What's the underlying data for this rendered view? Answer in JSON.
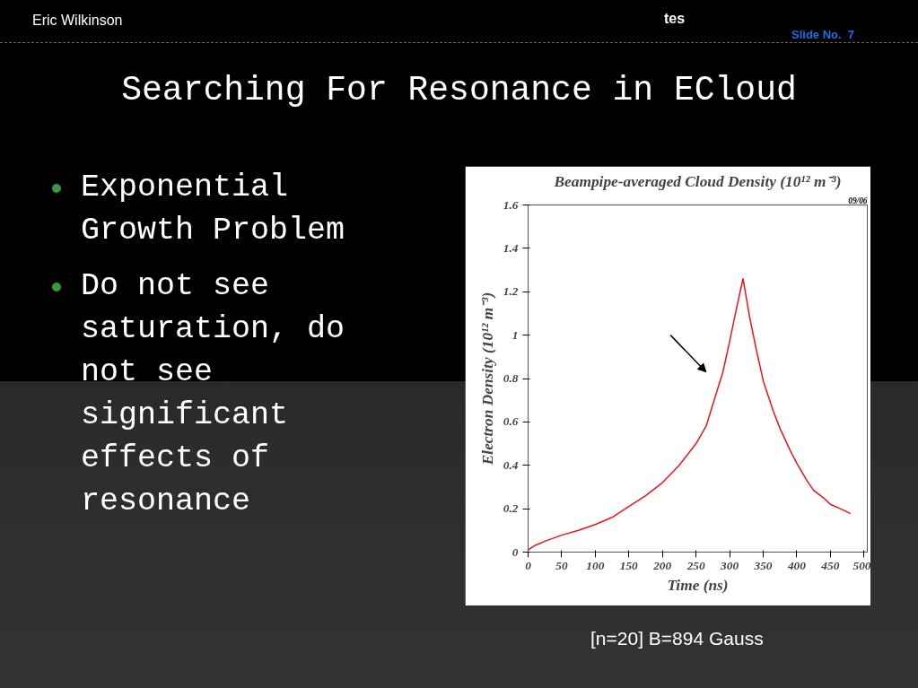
{
  "chart_data": {
    "type": "line",
    "title": "Beampipe-averaged Cloud Density (10¹² m⁻³)",
    "xlabel": "Time (ns)",
    "ylabel": "Electron Density (10¹² m⁻³)",
    "x": [
      0,
      10,
      25,
      50,
      75,
      100,
      125,
      150,
      175,
      200,
      225,
      250,
      265,
      275,
      290,
      300,
      310,
      320,
      330,
      340,
      350,
      365,
      375,
      390,
      400,
      415,
      425,
      440,
      450,
      465,
      480
    ],
    "series": [
      {
        "color": "#e8141e",
        "values": [
          0.01,
          0.03,
          0.05,
          0.078,
          0.1,
          0.127,
          0.16,
          0.21,
          0.26,
          0.32,
          0.4,
          0.5,
          0.58,
          0.68,
          0.83,
          0.97,
          1.12,
          1.26,
          1.08,
          0.93,
          0.79,
          0.65,
          0.57,
          0.47,
          0.41,
          0.33,
          0.285,
          0.25,
          0.22,
          0.2,
          0.177
        ]
      }
    ],
    "xlim": [
      0,
      505
    ],
    "ylim": [
      0,
      1.6
    ],
    "xticks": [
      0,
      50,
      100,
      150,
      200,
      250,
      300,
      350,
      400,
      450,
      500
    ],
    "yticks": [
      0,
      0.2,
      0.4,
      0.6,
      0.8,
      1,
      1.2,
      1.4,
      1.6
    ],
    "grid": false,
    "line_style": "solid",
    "marker": "none",
    "annotations": [
      "Eric Wilkinson",
      "tes",
      "Slide No.  7",
      "Searching For Resonance in ECloud",
      "Exponential Growth Problem",
      "Do not see saturation, do not see significant effects of resonance",
      "[n=20] B=894 Gauss",
      "09/06"
    ]
  }
}
